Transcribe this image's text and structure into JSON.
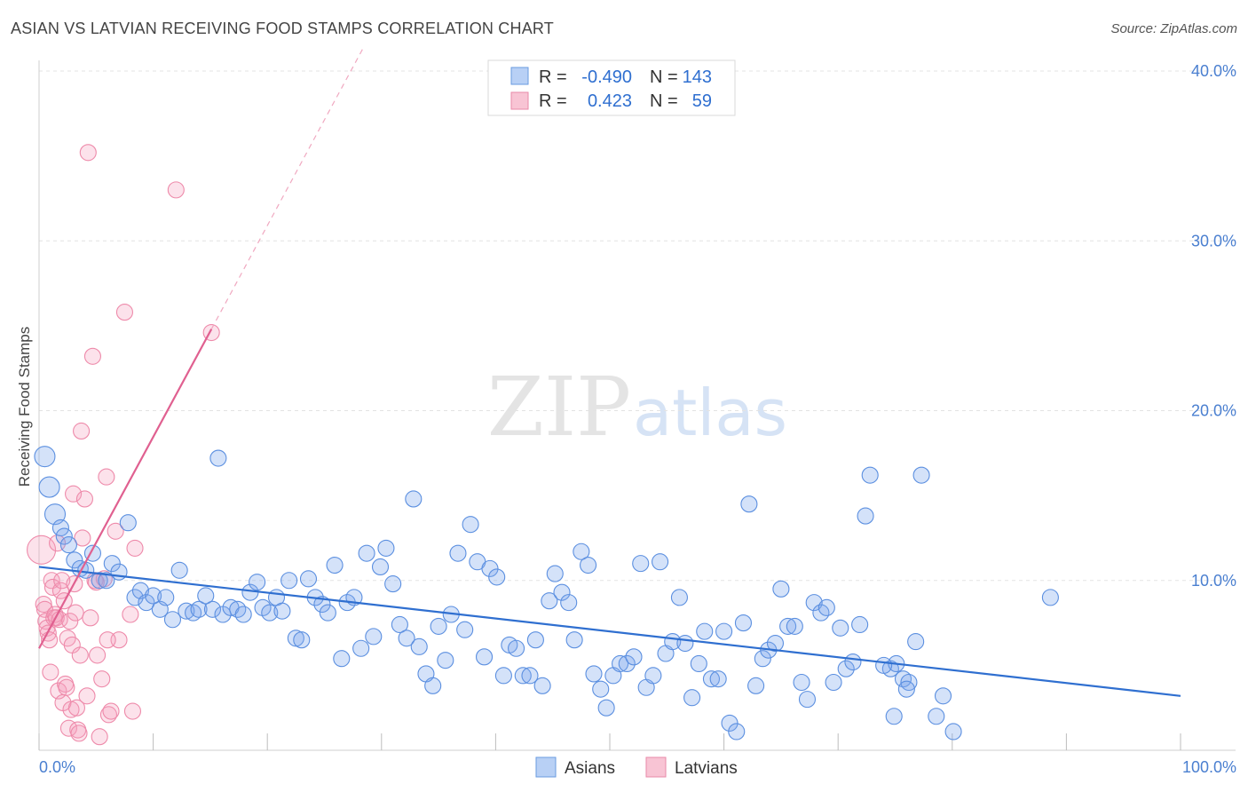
{
  "title": "ASIAN VS LATVIAN RECEIVING FOOD STAMPS CORRELATION CHART",
  "source": "Source: ZipAtlas.com",
  "watermark": {
    "zip": "ZIP",
    "atlas": "atlas"
  },
  "colors": {
    "asians": "#5b8fe0",
    "latvians": "#ee8aaa",
    "asians_line": "#2f6fd0",
    "latvians_line": "#e06090",
    "tick_label": "#4a7fd0"
  },
  "legend": {
    "rows": [
      {
        "series": "Asians",
        "r_label": "R =",
        "r_value": "-0.490",
        "n_label": "N =",
        "n_value": "143"
      },
      {
        "series": "Latvians",
        "r_label": "R =",
        "r_value": "0.423",
        "n_label": "N =",
        "n_value": "59"
      }
    ]
  },
  "chart_data": {
    "type": "scatter",
    "title": "ASIAN VS LATVIAN RECEIVING FOOD STAMPS CORRELATION CHART",
    "xlabel": "",
    "ylabel": "Receiving Food Stamps",
    "xlim": [
      0,
      100
    ],
    "ylim": [
      0,
      40
    ],
    "x_tick_labels": [
      "0.0%",
      "100.0%"
    ],
    "y_ticks": [
      10,
      20,
      30,
      40
    ],
    "y_tick_labels": [
      "10.0%",
      "20.0%",
      "30.0%",
      "40.0%"
    ],
    "grid": true,
    "legend_position": "top-center",
    "series": [
      {
        "name": "Asians",
        "r": -0.49,
        "n": 143,
        "trend": {
          "x": [
            0,
            100
          ],
          "y": [
            10.8,
            3.2
          ]
        },
        "points": [
          [
            0.5,
            17.3
          ],
          [
            0.9,
            15.5
          ],
          [
            1.4,
            13.9
          ],
          [
            1.9,
            13.1
          ],
          [
            2.2,
            12.6
          ],
          [
            2.6,
            12.1
          ],
          [
            3.1,
            11.2
          ],
          [
            3.6,
            10.7
          ],
          [
            4.1,
            10.6
          ],
          [
            4.7,
            11.6
          ],
          [
            5.3,
            10.0
          ],
          [
            5.9,
            10.0
          ],
          [
            6.4,
            11.0
          ],
          [
            7.0,
            10.5
          ],
          [
            7.8,
            13.4
          ],
          [
            8.4,
            9.0
          ],
          [
            8.9,
            9.4
          ],
          [
            9.4,
            8.7
          ],
          [
            10.0,
            9.1
          ],
          [
            10.6,
            8.3
          ],
          [
            11.1,
            9.0
          ],
          [
            11.7,
            7.7
          ],
          [
            12.3,
            10.6
          ],
          [
            12.9,
            8.2
          ],
          [
            13.5,
            8.1
          ],
          [
            14.0,
            8.3
          ],
          [
            14.6,
            9.1
          ],
          [
            15.2,
            8.3
          ],
          [
            15.7,
            17.2
          ],
          [
            16.1,
            8.0
          ],
          [
            16.8,
            8.4
          ],
          [
            17.4,
            8.3
          ],
          [
            17.9,
            8.0
          ],
          [
            18.5,
            9.3
          ],
          [
            19.1,
            9.9
          ],
          [
            19.6,
            8.4
          ],
          [
            20.2,
            8.1
          ],
          [
            20.8,
            9.0
          ],
          [
            21.3,
            8.2
          ],
          [
            21.9,
            10.0
          ],
          [
            22.5,
            6.6
          ],
          [
            23.0,
            6.5
          ],
          [
            23.6,
            10.1
          ],
          [
            24.2,
            9.0
          ],
          [
            24.8,
            8.6
          ],
          [
            25.3,
            8.1
          ],
          [
            25.9,
            10.9
          ],
          [
            26.5,
            5.4
          ],
          [
            27.0,
            8.7
          ],
          [
            27.6,
            9.0
          ],
          [
            28.2,
            6.0
          ],
          [
            28.7,
            11.6
          ],
          [
            29.3,
            6.7
          ],
          [
            29.9,
            10.8
          ],
          [
            30.4,
            11.9
          ],
          [
            31.0,
            9.8
          ],
          [
            31.6,
            7.4
          ],
          [
            32.2,
            6.6
          ],
          [
            32.8,
            14.8
          ],
          [
            33.3,
            6.1
          ],
          [
            33.9,
            4.5
          ],
          [
            34.5,
            3.8
          ],
          [
            35.0,
            7.3
          ],
          [
            35.6,
            5.3
          ],
          [
            36.1,
            8.0
          ],
          [
            36.7,
            11.6
          ],
          [
            37.3,
            7.1
          ],
          [
            37.8,
            13.3
          ],
          [
            38.4,
            11.1
          ],
          [
            39.0,
            5.5
          ],
          [
            39.5,
            10.7
          ],
          [
            40.1,
            10.2
          ],
          [
            40.7,
            4.4
          ],
          [
            41.2,
            6.2
          ],
          [
            41.8,
            6.0
          ],
          [
            42.4,
            4.4
          ],
          [
            43.0,
            4.4
          ],
          [
            43.5,
            6.5
          ],
          [
            44.1,
            3.8
          ],
          [
            44.7,
            8.8
          ],
          [
            45.2,
            10.4
          ],
          [
            45.8,
            9.3
          ],
          [
            46.4,
            8.7
          ],
          [
            46.9,
            6.5
          ],
          [
            47.5,
            11.7
          ],
          [
            48.1,
            10.9
          ],
          [
            48.6,
            4.5
          ],
          [
            49.2,
            3.6
          ],
          [
            49.7,
            2.5
          ],
          [
            50.3,
            4.4
          ],
          [
            50.9,
            5.1
          ],
          [
            51.5,
            5.1
          ],
          [
            52.1,
            5.5
          ],
          [
            52.7,
            11.0
          ],
          [
            53.2,
            3.7
          ],
          [
            53.8,
            4.4
          ],
          [
            54.4,
            11.1
          ],
          [
            54.9,
            5.7
          ],
          [
            55.5,
            6.4
          ],
          [
            56.1,
            9.0
          ],
          [
            56.6,
            6.3
          ],
          [
            57.2,
            3.1
          ],
          [
            57.8,
            5.1
          ],
          [
            58.3,
            7.0
          ],
          [
            58.9,
            4.2
          ],
          [
            59.5,
            4.2
          ],
          [
            60.0,
            7.0
          ],
          [
            60.5,
            1.6
          ],
          [
            61.1,
            1.1
          ],
          [
            61.7,
            7.5
          ],
          [
            62.2,
            14.5
          ],
          [
            62.8,
            3.8
          ],
          [
            63.4,
            5.4
          ],
          [
            63.9,
            5.9
          ],
          [
            64.5,
            6.3
          ],
          [
            65.0,
            9.5
          ],
          [
            65.6,
            7.3
          ],
          [
            66.2,
            7.3
          ],
          [
            66.8,
            4.0
          ],
          [
            67.3,
            3.0
          ],
          [
            67.9,
            8.7
          ],
          [
            68.5,
            8.1
          ],
          [
            69.0,
            8.4
          ],
          [
            69.6,
            4.0
          ],
          [
            70.2,
            7.2
          ],
          [
            70.7,
            4.8
          ],
          [
            71.3,
            5.2
          ],
          [
            71.9,
            7.4
          ],
          [
            72.4,
            13.8
          ],
          [
            74.6,
            4.8
          ],
          [
            75.1,
            5.1
          ],
          [
            75.7,
            4.2
          ],
          [
            76.2,
            4.0
          ],
          [
            76.8,
            6.4
          ],
          [
            72.8,
            16.2
          ],
          [
            77.3,
            16.2
          ],
          [
            74.0,
            5.0
          ],
          [
            76.0,
            3.6
          ],
          [
            88.6,
            9.0
          ],
          [
            74.9,
            2.0
          ],
          [
            78.6,
            2.0
          ],
          [
            80.1,
            1.1
          ],
          [
            79.2,
            3.2
          ]
        ]
      },
      {
        "name": "Latvians",
        "r": 0.423,
        "n": 59,
        "trend": {
          "x": [
            0,
            15.1
          ],
          "y": [
            6.0,
            24.8
          ]
        },
        "points": [
          [
            0.2,
            11.8
          ],
          [
            0.4,
            8.6
          ],
          [
            0.5,
            8.3
          ],
          [
            0.6,
            7.6
          ],
          [
            0.7,
            7.2
          ],
          [
            0.8,
            6.9
          ],
          [
            0.9,
            6.5
          ],
          [
            1.0,
            4.6
          ],
          [
            1.1,
            10.0
          ],
          [
            1.2,
            9.6
          ],
          [
            1.3,
            7.8
          ],
          [
            1.4,
            8.0
          ],
          [
            1.5,
            7.8
          ],
          [
            1.6,
            12.2
          ],
          [
            1.7,
            3.5
          ],
          [
            1.8,
            7.7
          ],
          [
            1.9,
            9.4
          ],
          [
            2.0,
            10.0
          ],
          [
            2.1,
            2.8
          ],
          [
            2.2,
            8.8
          ],
          [
            2.3,
            3.9
          ],
          [
            2.4,
            3.7
          ],
          [
            2.5,
            6.6
          ],
          [
            2.6,
            1.3
          ],
          [
            2.7,
            7.6
          ],
          [
            2.8,
            2.4
          ],
          [
            2.9,
            6.2
          ],
          [
            3.0,
            15.1
          ],
          [
            3.1,
            9.8
          ],
          [
            3.2,
            8.1
          ],
          [
            3.3,
            2.5
          ],
          [
            3.4,
            1.2
          ],
          [
            3.5,
            1.0
          ],
          [
            3.6,
            5.6
          ],
          [
            3.7,
            18.8
          ],
          [
            3.8,
            12.5
          ],
          [
            4.0,
            14.8
          ],
          [
            4.2,
            3.2
          ],
          [
            4.3,
            35.2
          ],
          [
            4.5,
            7.8
          ],
          [
            4.7,
            23.2
          ],
          [
            4.9,
            10.0
          ],
          [
            5.1,
            5.6
          ],
          [
            5.3,
            0.8
          ],
          [
            5.5,
            4.2
          ],
          [
            5.7,
            10.1
          ],
          [
            5.9,
            16.1
          ],
          [
            6.1,
            2.1
          ],
          [
            6.3,
            2.3
          ],
          [
            6.7,
            12.9
          ],
          [
            7.0,
            6.5
          ],
          [
            7.5,
            25.8
          ],
          [
            8.0,
            8.0
          ],
          [
            8.2,
            2.3
          ],
          [
            8.4,
            11.9
          ],
          [
            12.0,
            33.0
          ],
          [
            6.0,
            6.5
          ],
          [
            5.0,
            9.9
          ],
          [
            15.1,
            24.6
          ]
        ]
      }
    ]
  }
}
